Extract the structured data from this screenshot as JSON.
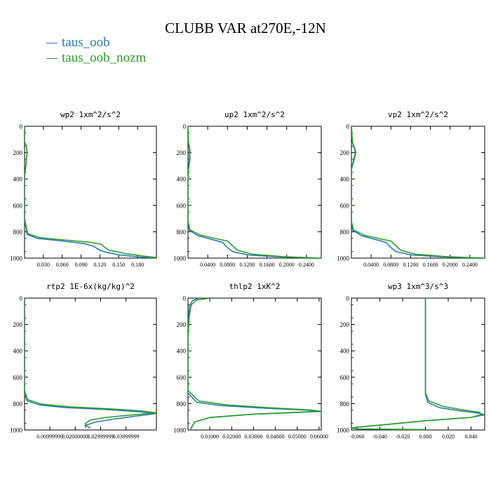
{
  "figure": {
    "title": "CLUBB VAR at270E,-12N",
    "legend": [
      {
        "label": "taus_oob",
        "color": "#2c7bb6"
      },
      {
        "label": "taus_oob_nozm",
        "color": "#2ca02c"
      }
    ]
  },
  "chart_data": [
    {
      "type": "line",
      "title": "wp2   1xm^2/s^2",
      "ylim": [
        1000,
        0
      ],
      "yticks": [
        "0",
        "200",
        "400",
        "600",
        "800",
        "1000"
      ],
      "xlim": [
        0.0,
        0.21
      ],
      "xticks": [
        0.03,
        0.06,
        0.09,
        0.12,
        0.15,
        0.18
      ],
      "xticklabels": [
        "0.030",
        "0.060",
        "0.090",
        "0.120",
        "0.150",
        "0.180"
      ],
      "series": [
        {
          "name": "taus_oob",
          "color": "#2c7bb6",
          "x": [
            0.0,
            0.0,
            0.003,
            0.004,
            0.002,
            0.0,
            0.0,
            0.0,
            0.004,
            0.02,
            0.06,
            0.095,
            0.11,
            0.12,
            0.13,
            0.15,
            0.18,
            0.21
          ],
          "y": [
            0,
            120,
            150,
            200,
            300,
            380,
            500,
            700,
            820,
            850,
            870,
            890,
            910,
            940,
            955,
            975,
            990,
            1000
          ]
        },
        {
          "name": "taus_oob_nozm",
          "color": "#2ca02c",
          "x": [
            0.0,
            0.0,
            0.003,
            0.004,
            0.002,
            0.0,
            0.0,
            0.0,
            0.005,
            0.025,
            0.07,
            0.105,
            0.122,
            0.128,
            0.135,
            0.16,
            0.19,
            0.21
          ],
          "y": [
            0,
            120,
            150,
            200,
            300,
            380,
            500,
            700,
            815,
            845,
            865,
            880,
            895,
            920,
            940,
            965,
            985,
            995
          ]
        }
      ]
    },
    {
      "type": "line",
      "title": "up2   1xm^2/s^2",
      "ylim": [
        1000,
        0
      ],
      "yticks": [
        "0",
        "200",
        "400",
        "600",
        "800",
        "1000"
      ],
      "xlim": [
        0.0,
        0.27
      ],
      "xticks": [
        0.04,
        0.08,
        0.12,
        0.16,
        0.2,
        0.24
      ],
      "xticklabels": [
        "0.0400",
        "0.0800",
        "0.1200",
        "0.1600",
        "0.2000",
        "0.2400"
      ],
      "series": [
        {
          "name": "taus_oob",
          "color": "#2c7bb6",
          "x": [
            0.0,
            0.001,
            0.003,
            0.003,
            0.001,
            0.0,
            0.0,
            0.003,
            0.02,
            0.05,
            0.07,
            0.08,
            0.09,
            0.12,
            0.18,
            0.27
          ],
          "y": [
            0,
            120,
            180,
            250,
            330,
            400,
            720,
            790,
            830,
            860,
            880,
            920,
            950,
            975,
            990,
            1000
          ]
        },
        {
          "name": "taus_oob_nozm",
          "color": "#2ca02c",
          "x": [
            0.0,
            0.001,
            0.004,
            0.004,
            0.001,
            0.0,
            0.0,
            0.004,
            0.025,
            0.06,
            0.08,
            0.09,
            0.1,
            0.13,
            0.19,
            0.27
          ],
          "y": [
            0,
            120,
            180,
            250,
            330,
            400,
            720,
            785,
            825,
            855,
            870,
            905,
            940,
            970,
            988,
            1000
          ]
        }
      ]
    },
    {
      "type": "line",
      "title": "vp2   1xm^2/s^2",
      "ylim": [
        1000,
        0
      ],
      "yticks": [
        "0",
        "200",
        "400",
        "600",
        "800",
        "1000"
      ],
      "xlim": [
        0.0,
        0.27
      ],
      "xticks": [
        0.04,
        0.08,
        0.12,
        0.16,
        0.2,
        0.24
      ],
      "xticklabels": [
        "0.0400",
        "0.0800",
        "0.1200",
        "0.1600",
        "0.2000",
        "0.2400"
      ],
      "series": [
        {
          "name": "taus_oob",
          "color": "#2c7bb6",
          "x": [
            0.0,
            0.002,
            0.006,
            0.008,
            0.004,
            0.0,
            0.0,
            0.003,
            0.02,
            0.05,
            0.07,
            0.08,
            0.09,
            0.12,
            0.18,
            0.27
          ],
          "y": [
            0,
            120,
            170,
            200,
            260,
            330,
            720,
            790,
            830,
            860,
            880,
            920,
            950,
            975,
            990,
            1000
          ]
        },
        {
          "name": "taus_oob_nozm",
          "color": "#2ca02c",
          "x": [
            0.0,
            0.002,
            0.007,
            0.009,
            0.005,
            0.0,
            0.0,
            0.004,
            0.025,
            0.06,
            0.08,
            0.09,
            0.1,
            0.13,
            0.19,
            0.27
          ],
          "y": [
            0,
            120,
            170,
            200,
            260,
            330,
            720,
            785,
            825,
            855,
            870,
            905,
            940,
            970,
            988,
            1000
          ]
        }
      ]
    },
    {
      "type": "line",
      "title": "rtp2   1E-6x(kg/kg)^2",
      "ylim": [
        1000,
        0
      ],
      "yticks": [
        "0",
        "200",
        "400",
        "600",
        "800",
        "1000"
      ],
      "xlim": [
        0.0,
        2.6e-07
      ],
      "xticks": [
        5e-08,
        1e-07,
        1.5e-07,
        2e-07
      ],
      "xticklabels": [
        "0.00999999",
        "0.02000000",
        "0.02999999",
        "0.03999999"
      ],
      "series": [
        {
          "name": "taus_oob",
          "color": "#2c7bb6",
          "x": [
            0.0,
            0.0,
            0.0,
            5e-09,
            3e-08,
            8e-08,
            1.6e-07,
            2.2e-07,
            2.6e-07,
            2.2e-07,
            1.8e-07,
            1.4e-07,
            1.2e-07,
            1.3e-07
          ],
          "y": [
            0,
            400,
            720,
            780,
            810,
            830,
            845,
            860,
            875,
            895,
            915,
            940,
            965,
            985
          ]
        },
        {
          "name": "taus_oob_nozm",
          "color": "#2ca02c",
          "x": [
            0.0,
            0.0,
            0.0,
            6e-09,
            3.5e-08,
            9e-08,
            1.7e-07,
            2.3e-07,
            2.6e-07,
            2e-07,
            1.6e-07,
            1.3e-07,
            1.2e-07,
            1.2e-07
          ],
          "y": [
            0,
            400,
            700,
            770,
            805,
            825,
            840,
            855,
            870,
            890,
            905,
            925,
            950,
            985
          ]
        }
      ]
    },
    {
      "type": "line",
      "title": "thlp2   1xK^2",
      "ylim": [
        1000,
        0
      ],
      "yticks": [
        "0",
        "200",
        "400",
        "600",
        "800",
        "1000"
      ],
      "xlim": [
        0.0,
        0.061
      ],
      "xticks": [
        0.01,
        0.02,
        0.03,
        0.04,
        0.05,
        0.06
      ],
      "xticklabels": [
        "0.01000",
        "0.02000",
        "0.03000",
        "0.04000",
        "0.05000",
        "0.06000"
      ],
      "series": [
        {
          "name": "taus_oob",
          "color": "#2c7bb6",
          "x": [
            0.005,
            0.002,
            0.0007,
            0.0003,
            0.0,
            0.0,
            0.0,
            0.004,
            0.015,
            0.035,
            0.055,
            0.061,
            0.03,
            0.01,
            0.003,
            0.001
          ],
          "y": [
            0,
            20,
            60,
            150,
            300,
            600,
            720,
            790,
            815,
            835,
            850,
            860,
            880,
            905,
            940,
            1000
          ]
        },
        {
          "name": "taus_oob_nozm",
          "color": "#2ca02c",
          "x": [
            0.01,
            0.004,
            0.0015,
            0.0006,
            0.0,
            0.0,
            0.0,
            0.005,
            0.018,
            0.038,
            0.056,
            0.061,
            0.03,
            0.01,
            0.003,
            0.001
          ],
          "y": [
            0,
            15,
            50,
            140,
            300,
            600,
            700,
            780,
            810,
            832,
            848,
            858,
            880,
            905,
            940,
            1000
          ]
        }
      ]
    },
    {
      "type": "line",
      "title": "wp3   1xm^3/s^3",
      "ylim": [
        1000,
        0
      ],
      "yticks": [
        "0",
        "200",
        "400",
        "600",
        "800",
        "1000"
      ],
      "xlim": [
        -0.065,
        0.052
      ],
      "xticks": [
        -0.06,
        -0.04,
        -0.02,
        0.0,
        0.02,
        0.04
      ],
      "xticklabels": [
        "-0.060",
        "-0.040",
        "-0.020",
        "0.000",
        "0.020",
        "0.040"
      ],
      "series": [
        {
          "name": "taus_oob",
          "color": "#2c7bb6",
          "x": [
            0.0,
            0.0,
            0.0,
            0.002,
            0.012,
            0.03,
            0.045,
            0.052,
            0.04,
            0.0,
            -0.03,
            -0.055,
            -0.065,
            -0.06,
            0.0
          ],
          "y": [
            0,
            500,
            730,
            790,
            830,
            855,
            870,
            885,
            905,
            930,
            955,
            975,
            985,
            992,
            997
          ]
        },
        {
          "name": "taus_oob_nozm",
          "color": "#2ca02c",
          "x": [
            0.0,
            0.0,
            0.0,
            0.003,
            0.015,
            0.033,
            0.047,
            0.05,
            0.04,
            0.0,
            -0.03,
            -0.055,
            -0.065,
            -0.06,
            0.0
          ],
          "y": [
            0,
            500,
            720,
            780,
            820,
            848,
            865,
            882,
            905,
            930,
            955,
            975,
            985,
            992,
            997
          ]
        }
      ]
    }
  ]
}
